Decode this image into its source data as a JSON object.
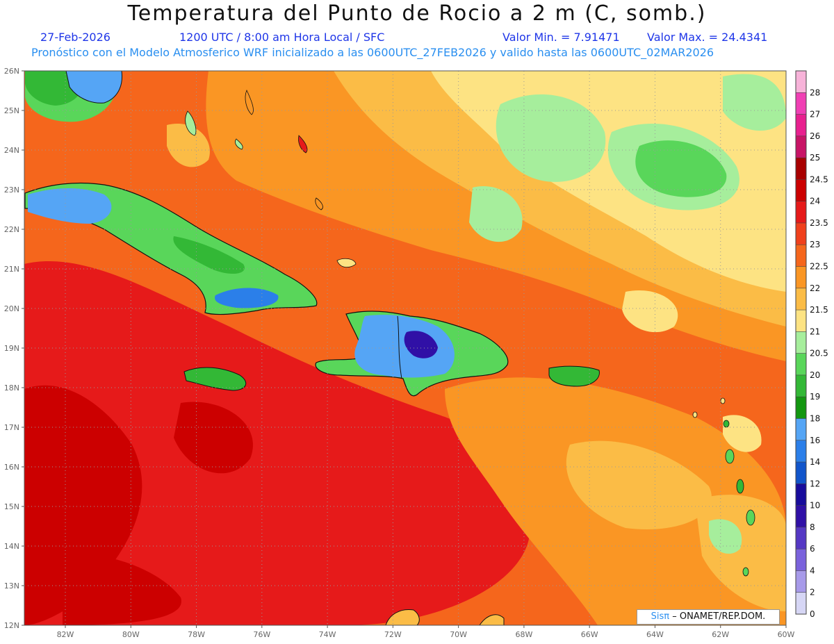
{
  "header": {
    "title": "Temperatura del Punto de Rocio a 2 m (C, somb.)",
    "date": "27-Feb-2026",
    "time": "1200 UTC / 8:00 am Hora Local / SFC",
    "min_label": "Valor Min. = 7.91471",
    "max_label": "Valor Max. = 24.4341",
    "model_line": "Pronóstico con el Modelo Atmosferico WRF inicializado a las 0600UTC_27FEB2026 y valido hasta las  0600UTC_02MAR2026"
  },
  "axes": {
    "lat_ticks": [
      "26N",
      "25N",
      "24N",
      "23N",
      "22N",
      "21N",
      "20N",
      "19N",
      "18N",
      "17N",
      "16N",
      "15N",
      "14N",
      "13N",
      "12N"
    ],
    "lon_ticks": [
      "82W",
      "80W",
      "78W",
      "76W",
      "74W",
      "72W",
      "70W",
      "68W",
      "66W",
      "64W",
      "62W",
      "60W"
    ]
  },
  "colorbar": {
    "levels": [
      "28",
      "27",
      "26",
      "25",
      "24.5",
      "24",
      "23.5",
      "23",
      "22.5",
      "22",
      "21.5",
      "21",
      "20.5",
      "20",
      "19",
      "18",
      "16",
      "14",
      "12",
      "10",
      "8",
      "6",
      "4",
      "2",
      "0"
    ],
    "colors": [
      "#f7b3d9",
      "#f03fb4",
      "#e8208f",
      "#c81466",
      "#a80000",
      "#cc0000",
      "#e61a1a",
      "#f0401c",
      "#f5661c",
      "#fa9624",
      "#fbbc46",
      "#fde383",
      "#a6ee9c",
      "#59d65a",
      "#33b836",
      "#139710",
      "#55a5f5",
      "#2b7fe9",
      "#1155cb",
      "#180c9c",
      "#3010a6",
      "#5538c4",
      "#7a62dc",
      "#a79ae9",
      "#d6d6f5"
    ]
  },
  "credit": {
    "brand": "Sisπ",
    "org": "– ONAMET/REP.DOM."
  }
}
